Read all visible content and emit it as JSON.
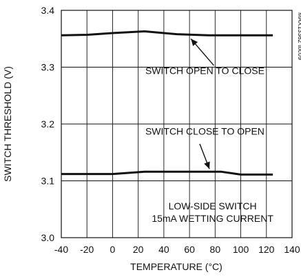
{
  "chart_data": {
    "type": "line",
    "xlabel": "TEMPERATURE (°C)",
    "ylabel": "SWITCH THRESHOLD (V)",
    "xlim": [
      -40,
      140
    ],
    "ylim": [
      3.0,
      3.4
    ],
    "x_ticks": [
      -40,
      -20,
      0,
      20,
      40,
      60,
      80,
      100,
      120,
      140
    ],
    "y_ticks": [
      3.0,
      3.1,
      3.2,
      3.3,
      3.4
    ],
    "x_tick_labels": [
      "-40",
      "-20",
      "0",
      "20",
      "40",
      "60",
      "80",
      "100",
      "120",
      "140"
    ],
    "y_tick_labels": [
      "3.0",
      "3.1",
      "3.2",
      "3.3",
      "3.4"
    ],
    "grid": true,
    "series": [
      {
        "name": "SWITCH OPEN TO CLOSE",
        "x": [
          -40,
          -20,
          0,
          25,
          50,
          75,
          100,
          125
        ],
        "y": [
          3.356,
          3.357,
          3.36,
          3.363,
          3.358,
          3.356,
          3.356,
          3.356
        ]
      },
      {
        "name": "SWITCH CLOSE TO OPEN",
        "x": [
          -40,
          -20,
          0,
          25,
          50,
          85,
          100,
          125
        ],
        "y": [
          3.112,
          3.112,
          3.112,
          3.116,
          3.116,
          3.116,
          3.111,
          3.111
        ]
      }
    ],
    "annotations": [
      {
        "text": "SWITCH OPEN TO CLOSE",
        "arrow_to": {
          "x": 60,
          "y": 3.356
        }
      },
      {
        "text": "SWITCH CLOSE TO OPEN",
        "arrow_to": {
          "x": 75,
          "y": 3.116
        }
      },
      {
        "text": "LOW-SIDE SWITCH"
      },
      {
        "text": "15mA WETTING CURRENT"
      }
    ],
    "figure_id": "MAX13362 toc09"
  }
}
